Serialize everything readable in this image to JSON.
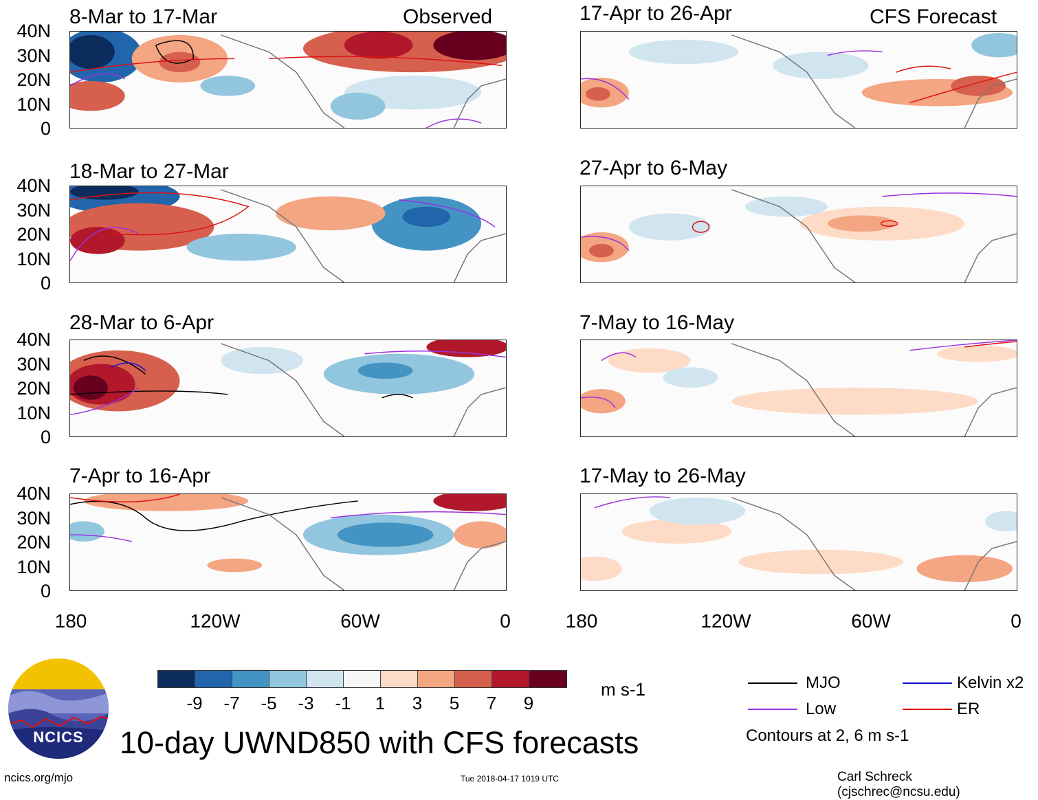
{
  "left_header": "Observed",
  "right_header": "CFS Forecast",
  "panels_left": [
    {
      "title": "8-Mar to 17-Mar"
    },
    {
      "title": "18-Mar to 27-Mar"
    },
    {
      "title": "28-Mar to 6-Apr"
    },
    {
      "title": "7-Apr to 16-Apr"
    }
  ],
  "panels_right": [
    {
      "title": "17-Apr to 26-Apr"
    },
    {
      "title": "27-Apr to 6-May"
    },
    {
      "title": "7-May to 16-May"
    },
    {
      "title": "17-May to 26-May"
    }
  ],
  "lat_labels": [
    "40N",
    "30N",
    "20N",
    "10N",
    "0"
  ],
  "lon_labels": [
    "180",
    "120W",
    "60W",
    "0"
  ],
  "colorbar": {
    "colors": [
      "#0c2c5e",
      "#2166ac",
      "#4393c3",
      "#92c5de",
      "#d1e5f0",
      "#f7f7f7",
      "#fddbc7",
      "#f4a582",
      "#d6604d",
      "#b2182b",
      "#67001f"
    ],
    "labels": [
      "-9",
      "-7",
      "-5",
      "-3",
      "-1",
      "1",
      "3",
      "5",
      "7",
      "9"
    ],
    "units": "m s-1"
  },
  "legend": {
    "mjo": "MJO",
    "mjo_color": "#000000",
    "kelvin": "Kelvin x2",
    "kelvin_color": "#1010d0",
    "low": "Low",
    "low_color": "#9b30e0",
    "er": "ER",
    "er_color": "#e01010",
    "contours_note": "Contours at 2, 6 m s-1"
  },
  "main_title": "10-day UWND850 with CFS forecasts",
  "logo_text": "NCICS",
  "footer": {
    "left": "ncics.org/mjo",
    "center": "Tue 2018-04-17 1019 UTC",
    "right": "Carl Schreck (cjschrec@ncsu.edu)"
  }
}
